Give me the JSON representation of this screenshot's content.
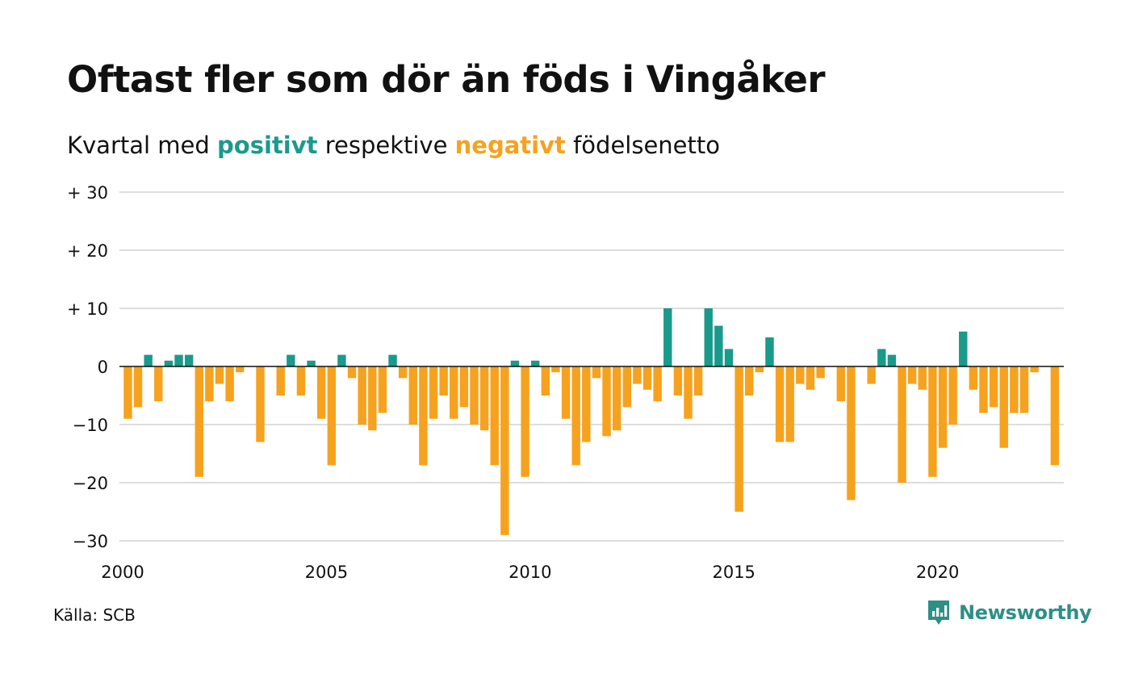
{
  "title": "Oftast fler som dör än föds i Vingåker",
  "subtitle": {
    "part1": "Kvartal med ",
    "positive_word": "positivt",
    "part2": " respektive ",
    "negative_word": "negativt",
    "part3": " födelsenetto"
  },
  "source": "Källa: SCB",
  "brand": {
    "name": "Newsworthy",
    "icon": "newsworthy-logo-icon"
  },
  "colors": {
    "positive": "#1a9a8b",
    "negative": "#f6a21e",
    "grid": "#dddddd",
    "zero": "#111111",
    "brand": "#2e8f86"
  },
  "chart_data": {
    "type": "bar",
    "title": "Oftast fler som dör än föds i Vingåker",
    "subtitle": "Kvartal med positivt respektive negativt födelsenetto",
    "start_year": 2000,
    "values_per_year": 4,
    "values": [
      -9,
      -7,
      2,
      -6,
      1,
      2,
      2,
      -19,
      -6,
      -3,
      -6,
      -1,
      0,
      -13,
      0,
      -5,
      2,
      -5,
      1,
      -9,
      -17,
      2,
      -2,
      -10,
      -11,
      -8,
      2,
      -2,
      -10,
      -17,
      -9,
      -5,
      -9,
      -7,
      -10,
      -11,
      -17,
      -29,
      1,
      -19,
      1,
      -5,
      -1,
      -9,
      -17,
      -13,
      -2,
      -12,
      -11,
      -7,
      -3,
      -4,
      -6,
      10,
      -5,
      -9,
      -5,
      10,
      7,
      3,
      -25,
      -5,
      -1,
      5,
      -13,
      -13,
      -3,
      -4,
      -2,
      0,
      -6,
      -23,
      0,
      -3,
      3,
      2,
      -20,
      -3,
      -4,
      -19,
      -14,
      -10,
      6,
      -4,
      -8,
      -7,
      -14,
      -8,
      -8,
      -1,
      0,
      -17
    ],
    "ylim": [
      -30,
      30
    ],
    "y_ticks": [
      -30,
      -20,
      -10,
      0,
      10,
      20,
      30
    ],
    "y_tick_labels": [
      "−30",
      "−20",
      "−10",
      "0",
      "+ 10",
      "+ 20",
      "+ 30"
    ],
    "x_ticks": [
      2000,
      2005,
      2010,
      2015,
      2020
    ],
    "x_tick_labels": [
      "2000",
      "2005",
      "2010",
      "2015",
      "2020"
    ],
    "xlabel": "",
    "ylabel": "",
    "grid": true,
    "legend": "none"
  }
}
